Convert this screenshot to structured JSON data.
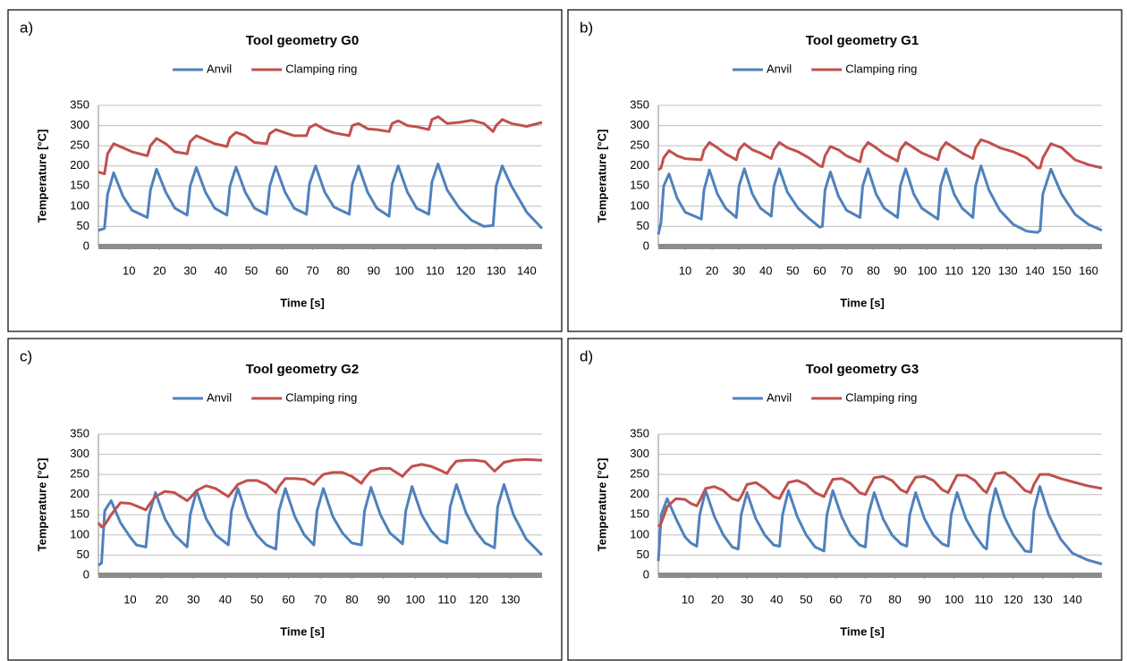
{
  "chart_data": [
    {
      "type": "line",
      "label": "a)",
      "title": "Tool geometry G0",
      "x_label": "Time [s]",
      "y_label": "Temperature [°C]",
      "legend": "top",
      "grid": true,
      "xlim": [
        0,
        145
      ],
      "xticks": [
        10,
        20,
        30,
        40,
        50,
        60,
        70,
        80,
        90,
        100,
        110,
        120,
        130,
        140
      ],
      "ylim": [
        0,
        350
      ],
      "yticks": [
        0,
        50,
        100,
        150,
        200,
        250,
        300,
        350
      ],
      "x": [
        0,
        2,
        3,
        5,
        8,
        11,
        16,
        17,
        19,
        22,
        25,
        29,
        30,
        32,
        35,
        38,
        42,
        43,
        45,
        48,
        51,
        55,
        56,
        58,
        61,
        64,
        68,
        69,
        71,
        74,
        77,
        82,
        83,
        85,
        88,
        91,
        95,
        96,
        98,
        101,
        104,
        108,
        109,
        111,
        114,
        118,
        122,
        126,
        129,
        130,
        132,
        135,
        140,
        145
      ],
      "series": [
        {
          "name": "Anvil",
          "color": "#4f81bd",
          "values": [
            40,
            45,
            130,
            183,
            125,
            90,
            72,
            140,
            192,
            135,
            95,
            78,
            150,
            196,
            135,
            95,
            78,
            150,
            197,
            135,
            95,
            80,
            150,
            198,
            135,
            95,
            80,
            155,
            200,
            135,
            98,
            80,
            155,
            200,
            135,
            95,
            75,
            155,
            200,
            135,
            95,
            80,
            160,
            205,
            140,
            95,
            65,
            50,
            52,
            150,
            200,
            150,
            85,
            45
          ]
        },
        {
          "name": "Clamping ring",
          "color": "#c0504d",
          "values": [
            185,
            180,
            230,
            255,
            245,
            235,
            225,
            250,
            268,
            255,
            235,
            230,
            260,
            275,
            265,
            255,
            248,
            270,
            283,
            275,
            258,
            255,
            280,
            290,
            282,
            275,
            275,
            295,
            303,
            290,
            282,
            275,
            300,
            305,
            292,
            290,
            285,
            305,
            312,
            300,
            297,
            290,
            315,
            322,
            305,
            308,
            313,
            305,
            285,
            300,
            315,
            305,
            298,
            308
          ]
        }
      ]
    },
    {
      "type": "line",
      "label": "b)",
      "title": "Tool geometry G1",
      "x_label": "Time [s]",
      "y_label": "Temperature [°C]",
      "legend": "top",
      "grid": true,
      "xlim": [
        0,
        165
      ],
      "xticks": [
        10,
        20,
        30,
        40,
        50,
        60,
        70,
        80,
        90,
        100,
        110,
        120,
        130,
        140,
        150,
        160
      ],
      "ylim": [
        0,
        350
      ],
      "yticks": [
        0,
        50,
        100,
        150,
        200,
        250,
        300,
        350
      ],
      "x": [
        0,
        1,
        2,
        4,
        7,
        10,
        16,
        17,
        19,
        22,
        25,
        29,
        30,
        32,
        35,
        38,
        42,
        43,
        45,
        48,
        52,
        56,
        60,
        61,
        62,
        64,
        67,
        70,
        75,
        76,
        78,
        81,
        84,
        89,
        90,
        92,
        95,
        98,
        104,
        105,
        107,
        110,
        113,
        117,
        118,
        120,
        123,
        127,
        132,
        137,
        141,
        142,
        143,
        146,
        150,
        155,
        160,
        165
      ],
      "series": [
        {
          "name": "Anvil",
          "color": "#4f81bd",
          "values": [
            30,
            60,
            150,
            180,
            120,
            85,
            68,
            140,
            190,
            130,
            95,
            72,
            150,
            193,
            130,
            95,
            75,
            150,
            193,
            135,
            95,
            70,
            48,
            50,
            140,
            185,
            125,
            90,
            72,
            150,
            193,
            130,
            95,
            72,
            150,
            193,
            130,
            95,
            68,
            150,
            193,
            130,
            95,
            72,
            150,
            200,
            140,
            90,
            55,
            38,
            35,
            40,
            130,
            192,
            130,
            80,
            55,
            40
          ]
        },
        {
          "name": "Clamping ring",
          "color": "#c0504d",
          "values": [
            190,
            195,
            220,
            238,
            225,
            218,
            215,
            240,
            258,
            245,
            230,
            215,
            240,
            255,
            240,
            232,
            218,
            240,
            258,
            245,
            235,
            220,
            200,
            198,
            225,
            248,
            240,
            225,
            210,
            240,
            258,
            245,
            230,
            212,
            240,
            258,
            245,
            232,
            215,
            240,
            258,
            245,
            232,
            218,
            245,
            265,
            258,
            245,
            235,
            220,
            195,
            195,
            220,
            255,
            245,
            215,
            203,
            195
          ]
        }
      ]
    },
    {
      "type": "line",
      "label": "c)",
      "title": "Tool geometry G2",
      "x_label": "Time [s]",
      "y_label": "Temperature [°C]",
      "legend": "top",
      "grid": true,
      "xlim": [
        0,
        140
      ],
      "xticks": [
        10,
        20,
        30,
        40,
        50,
        60,
        70,
        80,
        90,
        100,
        110,
        120,
        130
      ],
      "ylim": [
        0,
        350
      ],
      "yticks": [
        0,
        50,
        100,
        150,
        200,
        250,
        300,
        350
      ],
      "x": [
        0,
        1,
        2,
        4,
        7,
        10,
        12,
        15,
        16,
        18,
        21,
        24,
        28,
        29,
        31,
        34,
        37,
        41,
        42,
        44,
        47,
        50,
        53,
        56,
        57,
        59,
        62,
        65,
        68,
        69,
        71,
        74,
        77,
        80,
        83,
        84,
        86,
        89,
        92,
        96,
        97,
        99,
        102,
        105,
        108,
        110,
        111,
        113,
        116,
        119,
        122,
        125,
        126,
        128,
        131,
        135,
        140
      ],
      "series": [
        {
          "name": "Anvil",
          "color": "#4f81bd",
          "values": [
            25,
            30,
            160,
            185,
            130,
            95,
            75,
            70,
            150,
            205,
            140,
            100,
            70,
            150,
            210,
            140,
            100,
            75,
            160,
            215,
            145,
            100,
            75,
            65,
            160,
            215,
            145,
            100,
            75,
            160,
            215,
            145,
            105,
            80,
            75,
            160,
            218,
            150,
            105,
            78,
            160,
            220,
            150,
            110,
            85,
            80,
            170,
            225,
            155,
            110,
            80,
            68,
            170,
            225,
            150,
            90,
            50
          ]
        },
        {
          "name": "Clamping ring",
          "color": "#c0504d",
          "values": [
            130,
            120,
            125,
            150,
            180,
            178,
            172,
            162,
            175,
            195,
            208,
            205,
            185,
            192,
            210,
            222,
            215,
            195,
            205,
            225,
            235,
            235,
            225,
            205,
            220,
            240,
            240,
            238,
            225,
            235,
            250,
            255,
            255,
            245,
            228,
            240,
            258,
            265,
            265,
            245,
            255,
            270,
            275,
            270,
            260,
            252,
            265,
            283,
            285,
            285,
            282,
            258,
            265,
            280,
            285,
            287,
            285
          ]
        }
      ]
    },
    {
      "type": "line",
      "label": "d)",
      "title": "Tool geometry G3",
      "x_label": "Time [s]",
      "y_label": "Temperature [°C]",
      "legend": "top",
      "grid": true,
      "xlim": [
        0,
        150
      ],
      "xticks": [
        10,
        20,
        30,
        40,
        50,
        60,
        70,
        80,
        90,
        100,
        110,
        120,
        130,
        140
      ],
      "ylim": [
        0,
        350
      ],
      "yticks": [
        0,
        50,
        100,
        150,
        200,
        250,
        300,
        350
      ],
      "x": [
        0,
        1,
        3,
        6,
        9,
        11,
        13,
        14,
        16,
        19,
        22,
        25,
        27,
        28,
        30,
        33,
        36,
        39,
        41,
        42,
        44,
        47,
        50,
        53,
        56,
        57,
        59,
        62,
        65,
        68,
        70,
        71,
        73,
        76,
        79,
        82,
        84,
        85,
        87,
        90,
        93,
        96,
        98,
        99,
        101,
        104,
        107,
        110,
        111,
        112,
        114,
        117,
        120,
        124,
        126,
        127,
        129,
        132,
        136,
        140,
        145,
        150
      ],
      "series": [
        {
          "name": "Anvil",
          "color": "#4f81bd",
          "values": [
            35,
            150,
            190,
            140,
            95,
            80,
            72,
            150,
            210,
            145,
            100,
            70,
            65,
            150,
            205,
            140,
            100,
            75,
            72,
            150,
            210,
            145,
            100,
            70,
            60,
            150,
            210,
            145,
            100,
            75,
            70,
            150,
            205,
            140,
            100,
            78,
            72,
            150,
            205,
            140,
            100,
            78,
            72,
            150,
            205,
            140,
            100,
            70,
            65,
            150,
            215,
            145,
            100,
            60,
            58,
            160,
            220,
            150,
            90,
            55,
            38,
            28
          ]
        },
        {
          "name": "Clamping ring",
          "color": "#c0504d",
          "values": [
            120,
            130,
            170,
            190,
            188,
            178,
            172,
            185,
            215,
            220,
            210,
            190,
            185,
            195,
            225,
            230,
            215,
            195,
            190,
            205,
            230,
            235,
            225,
            205,
            195,
            210,
            238,
            240,
            228,
            205,
            200,
            215,
            242,
            245,
            235,
            212,
            205,
            220,
            243,
            245,
            235,
            212,
            205,
            220,
            248,
            248,
            235,
            210,
            205,
            222,
            252,
            255,
            240,
            210,
            205,
            225,
            250,
            250,
            240,
            232,
            222,
            215
          ]
        }
      ]
    }
  ]
}
